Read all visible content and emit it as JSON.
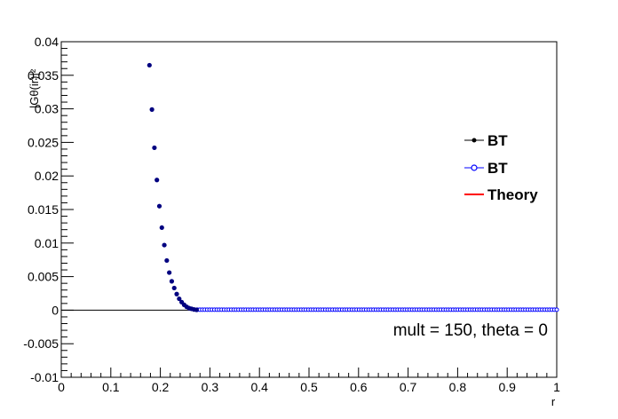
{
  "chart_data": {
    "type": "scatter",
    "xlabel": "r",
    "ylabel": "|Gθ(ir)|²",
    "xlim": [
      0,
      1
    ],
    "ylim": [
      -0.01,
      0.04
    ],
    "x_ticks": [
      "0",
      "0.1",
      "0.2",
      "0.3",
      "0.4",
      "0.5",
      "0.6",
      "0.7",
      "0.8",
      "0.9",
      "1"
    ],
    "y_ticks": [
      "-0.01",
      "-0.005",
      "0",
      "0.005",
      "0.01",
      "0.015",
      "0.02",
      "0.025",
      "0.03",
      "0.035",
      "0.04"
    ],
    "annotation": "mult = 150, theta = 0",
    "legend_position": "right",
    "series": [
      {
        "name": "BT",
        "style": "filled-marker-line",
        "color": "#000000",
        "x": [
          0.178,
          0.183,
          0.188,
          0.193,
          0.198,
          0.203,
          0.208,
          0.213,
          0.218,
          0.223,
          0.228,
          0.233,
          0.238,
          0.243,
          0.248,
          0.253,
          0.258,
          0.263,
          0.268,
          0.273
        ],
        "y": [
          0.0365,
          0.0299,
          0.0242,
          0.0194,
          0.0155,
          0.0123,
          0.0097,
          0.0074,
          0.0056,
          0.0043,
          0.0033,
          0.0024,
          0.0017,
          0.0012,
          0.0008,
          0.0005,
          0.0003,
          0.0002,
          0.0001,
          5e-05
        ]
      },
      {
        "name": "BT",
        "style": "open-marker-line",
        "color": "#0000ff",
        "x_range": [
          0.275,
          1.0
        ],
        "y_value": 0.0,
        "y_note": "approximately zero across range"
      },
      {
        "name": "Theory",
        "style": "line",
        "color": "#ff0000",
        "x": [],
        "y": []
      }
    ]
  },
  "colors": {
    "frame": "#000000",
    "series1": "#000080",
    "series2": "#0000ff",
    "theory": "#ff0000"
  }
}
